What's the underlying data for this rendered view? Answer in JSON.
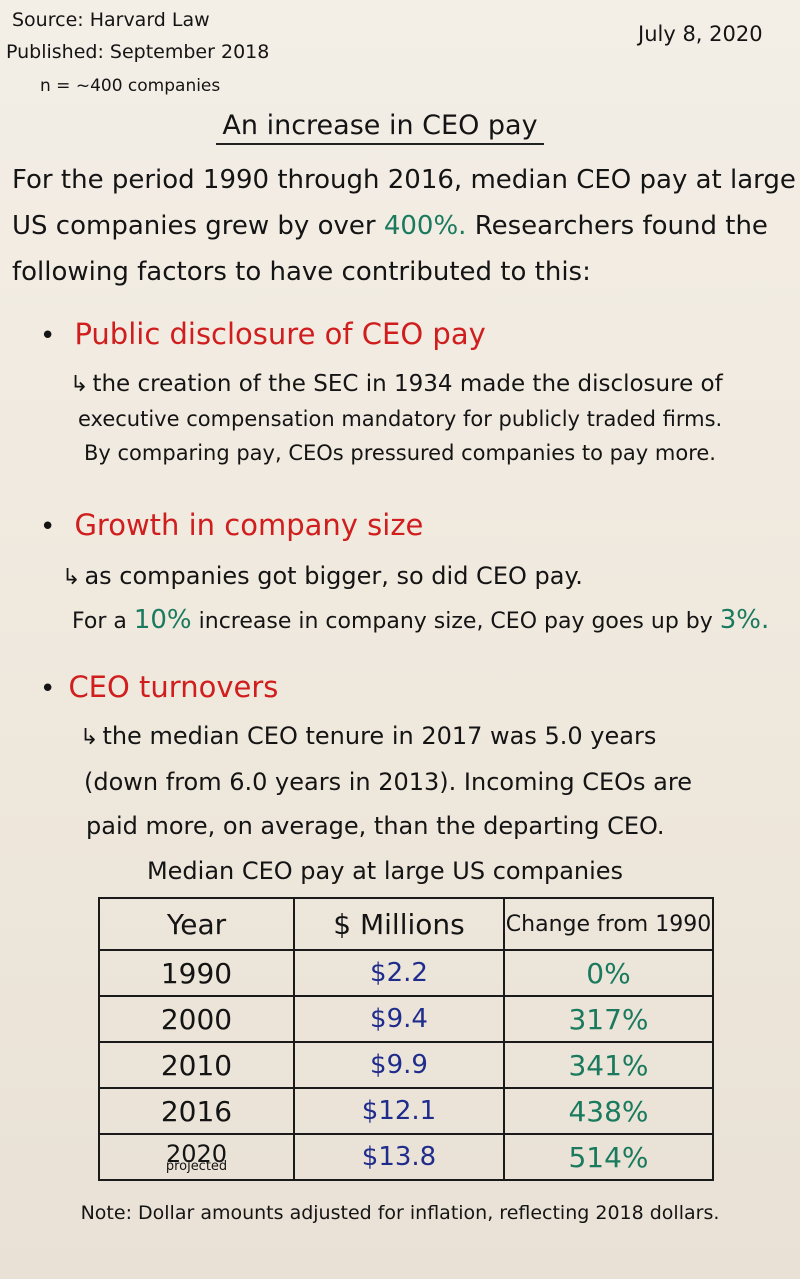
{
  "header": {
    "source": "Source: Harvard Law",
    "published": "Published: September 2018",
    "sample": "n = ~400 companies",
    "date": "July 8, 2020"
  },
  "title": "An increase in CEO pay",
  "intro": {
    "line1": "For the period 1990 through 2016, median CEO pay at large",
    "line2_pre": "US companies grew by over ",
    "line2_highlight": "400%.",
    "line2_post": " Researchers found the",
    "line3": "following factors to have contributed to this:"
  },
  "factors": [
    {
      "heading": "Public disclosure of CEO pay",
      "lines": [
        "the creation of the SEC in 1934 made the disclosure of",
        "executive compensation mandatory for publicly traded firms.",
        "By comparing pay, CEOs pressured companies to pay more."
      ]
    },
    {
      "heading": "Growth in company size",
      "lines": [
        "as companies got bigger, so did CEO pay."
      ],
      "stat_pre": "For a ",
      "stat_a": "10%",
      "stat_mid": " increase in company size, CEO pay goes up by ",
      "stat_b": "3%."
    },
    {
      "heading": "CEO turnovers",
      "lines": [
        "the median CEO tenure in 2017 was 5.0 years",
        "(down from 6.0 years in 2013). Incoming CEOs are",
        "paid more, on average, than the departing CEO."
      ]
    }
  ],
  "table": {
    "caption": "Median CEO pay at large US companies",
    "headers": [
      "Year",
      "$ Millions",
      "Change from 1990"
    ],
    "rows": [
      {
        "year": "1990",
        "pay": "$2.2",
        "change": "0%"
      },
      {
        "year": "2000",
        "pay": "$9.4",
        "change": "317%"
      },
      {
        "year": "2010",
        "pay": "$9.9",
        "change": "341%"
      },
      {
        "year": "2016",
        "pay": "$12.1",
        "change": "438%"
      },
      {
        "year": "2020",
        "year_note": "projected",
        "pay": "$13.8",
        "change": "514%"
      }
    ]
  },
  "note": "Note: Dollar amounts adjusted for inflation, reflecting 2018 dollars.",
  "colors": {
    "accent_red": "#d01d1d",
    "accent_green": "#1a7a5e",
    "money_blue": "#1f2c8c"
  }
}
